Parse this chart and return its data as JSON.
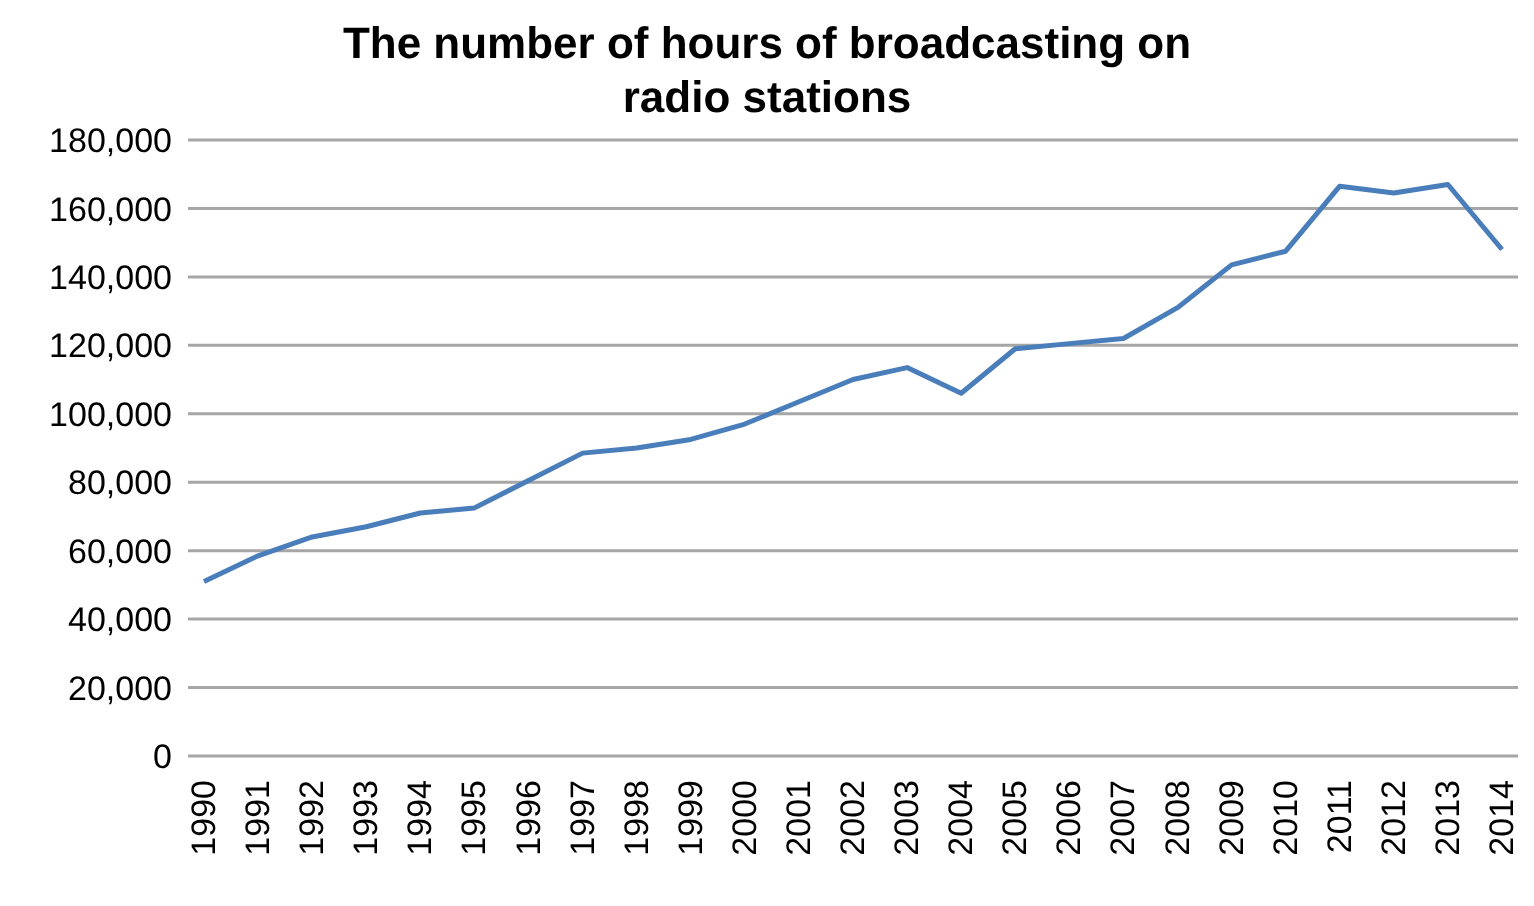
{
  "chart_data": {
    "type": "line",
    "title": "The number of hours of broadcasting on radio stations",
    "categories": [
      "1990",
      "1991",
      "1992",
      "1993",
      "1994",
      "1995",
      "1996",
      "1997",
      "1998",
      "1999",
      "2000",
      "2001",
      "2002",
      "2003",
      "2004",
      "2005",
      "2006",
      "2007",
      "2008",
      "2009",
      "2010",
      "2011",
      "2012",
      "2013",
      "2014"
    ],
    "series": [
      {
        "color": "#4a7ebb",
        "values": [
          51000,
          58500,
          64000,
          67000,
          71000,
          72500,
          80500,
          88500,
          90000,
          92500,
          97000,
          103500,
          110000,
          113500,
          106000,
          119000,
          120500,
          122000,
          131000,
          143500,
          147500,
          166500,
          164500,
          167000,
          148000
        ]
      }
    ],
    "ylim": [
      0,
      180000
    ],
    "yticks": [
      0,
      {
        "value": 20000,
        "label": "20,000"
      },
      {
        "value": 40000,
        "label": "40,000"
      },
      {
        "value": 60000,
        "label": "60,000"
      },
      {
        "value": 80000,
        "label": "80,000"
      },
      {
        "value": 100000,
        "label": "100,000"
      },
      {
        "value": 120000,
        "label": "120,000"
      },
      {
        "value": 140000,
        "label": "140,000"
      },
      {
        "value": 160000,
        "label": "160,000"
      },
      {
        "value": 180000,
        "label": "180,000"
      }
    ],
    "grid": "y",
    "legend": false,
    "marker": "none",
    "line_style": "solid"
  }
}
